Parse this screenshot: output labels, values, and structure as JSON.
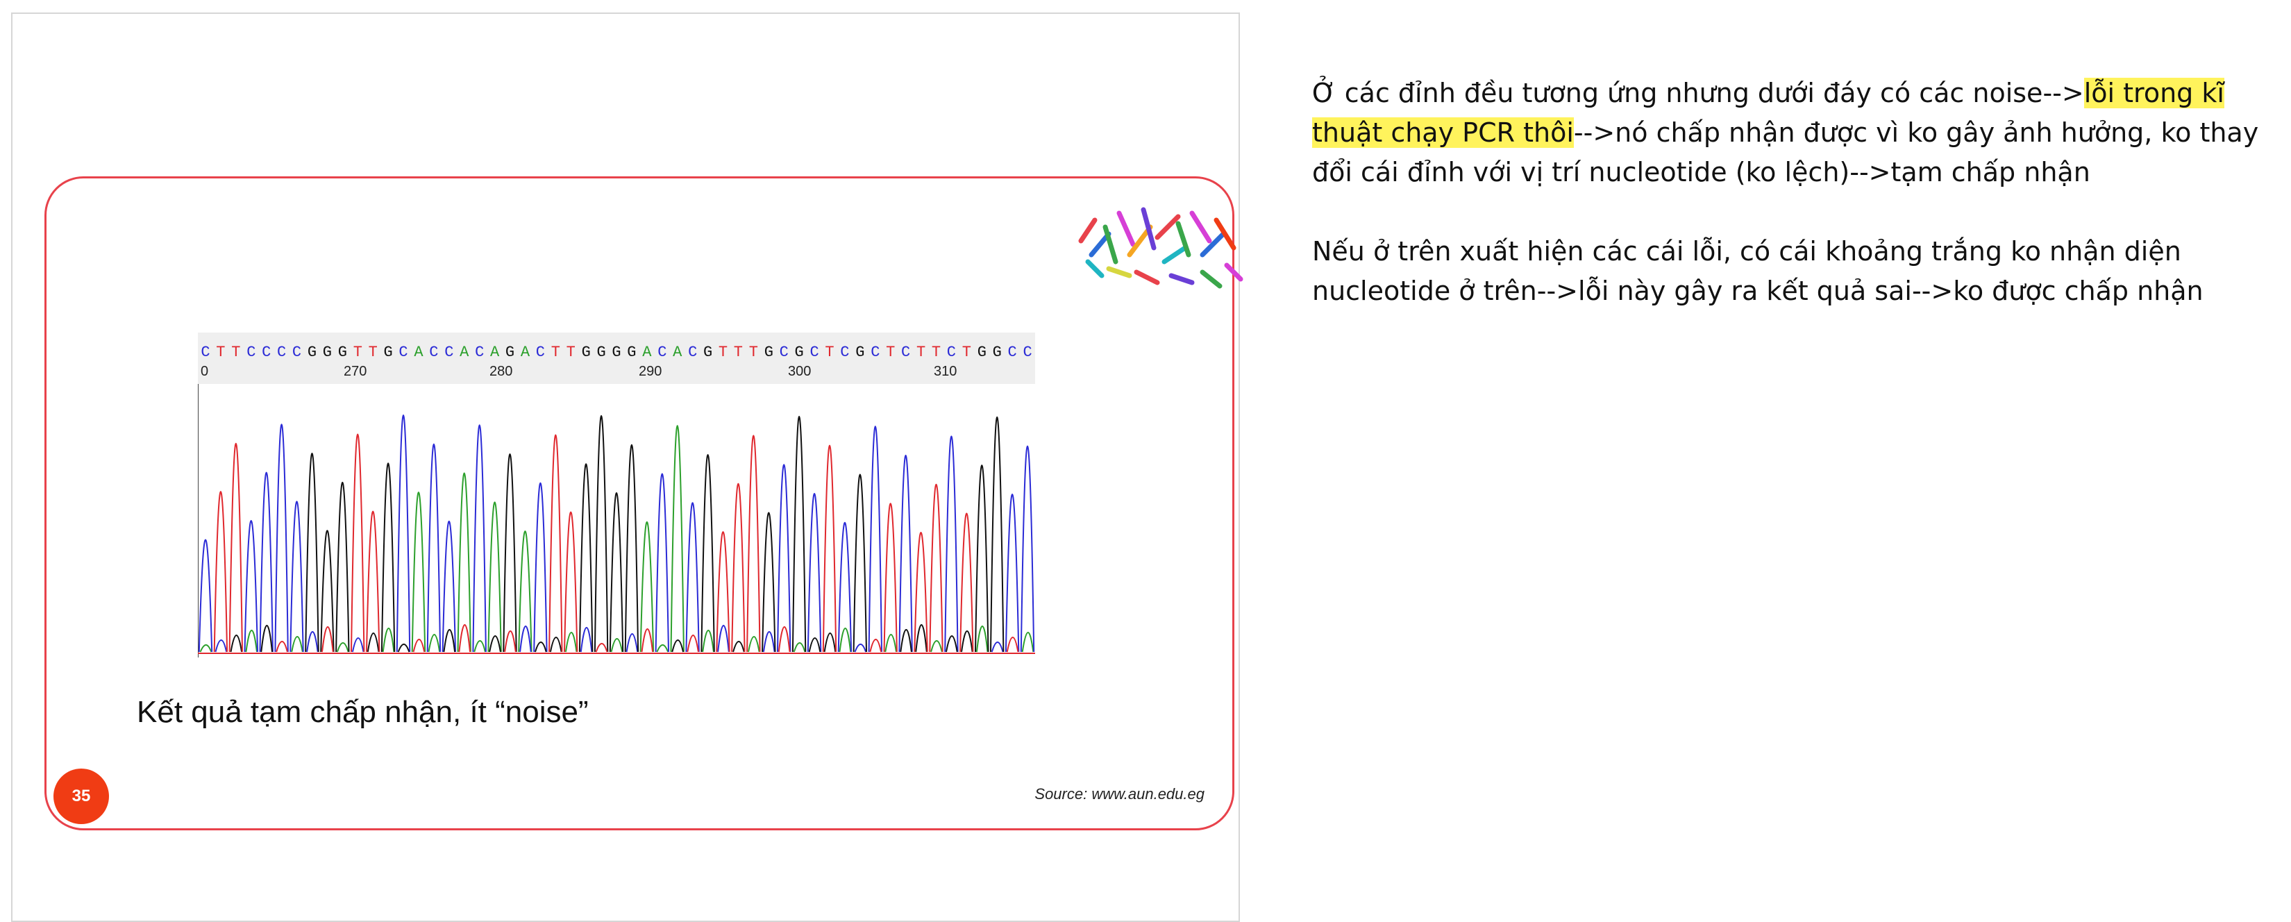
{
  "slide": {
    "sequence_text": "CTTCCCCGGGTTGCACCACAGACTTGGGGACACGTTTGCGCTCGCTCTTCTGGCC",
    "ticks": [
      "0",
      "270",
      "280",
      "290",
      "300",
      "310"
    ],
    "caption": "Kết quả tạm chấp nhận, ít “noise”",
    "page_number": "35",
    "source": "Source: www.aun.edu.eg",
    "trace_colors": {
      "A": "#2ca02c",
      "C": "#2b2bd6",
      "G": "#111111",
      "T": "#e0282e"
    },
    "icons": [
      "chromosomes-icon"
    ]
  },
  "notes": {
    "note1": {
      "part1": "Ở các đỉnh đều tương ứng nhưng dưới đáy có các noise-->",
      "highlight": "lỗi trong kĩ thuật chạy PCR thôi",
      "part2": "-->nó chấp nhận được vì ko gây ảnh hưởng, ko thay đổi cái đỉnh với vị trí nucleotide (ko lệch)-->tạm chấp nhận"
    },
    "note2": "Nếu ở trên xuất hiện các cái lỗi, có cái khoảng trắng ko nhận diện nucleotide ở trên-->lỗi này gây ra kết quả sai-->ko được chấp nhận",
    "highlight_color": "#fff35c"
  }
}
